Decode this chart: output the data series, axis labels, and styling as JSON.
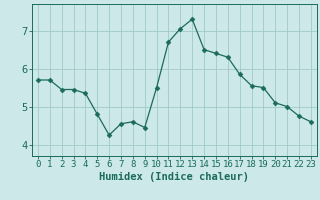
{
  "x": [
    0,
    1,
    2,
    3,
    4,
    5,
    6,
    7,
    8,
    9,
    10,
    11,
    12,
    13,
    14,
    15,
    16,
    17,
    18,
    19,
    20,
    21,
    22,
    23
  ],
  "y": [
    5.7,
    5.7,
    5.45,
    5.45,
    5.35,
    4.8,
    4.25,
    4.55,
    4.6,
    4.45,
    5.5,
    6.7,
    7.05,
    7.3,
    6.5,
    6.4,
    6.3,
    5.85,
    5.55,
    5.5,
    5.1,
    5.0,
    4.75,
    4.6
  ],
  "line_color": "#1a6b5a",
  "marker": "D",
  "marker_size": 2.5,
  "bg_color": "#cce8e8",
  "grid_color": "#a0c8c8",
  "axis_color": "#1a6b5a",
  "xlabel": "Humidex (Indice chaleur)",
  "xlim": [
    -0.5,
    23.5
  ],
  "ylim": [
    3.7,
    7.7
  ],
  "yticks": [
    4,
    5,
    6,
    7
  ],
  "xtick_labels": [
    "0",
    "1",
    "2",
    "3",
    "4",
    "5",
    "6",
    "7",
    "8",
    "9",
    "10",
    "11",
    "12",
    "13",
    "14",
    "15",
    "16",
    "17",
    "18",
    "19",
    "20",
    "21",
    "22",
    "23"
  ],
  "label_fontsize": 7.5,
  "tick_fontsize": 6.5
}
